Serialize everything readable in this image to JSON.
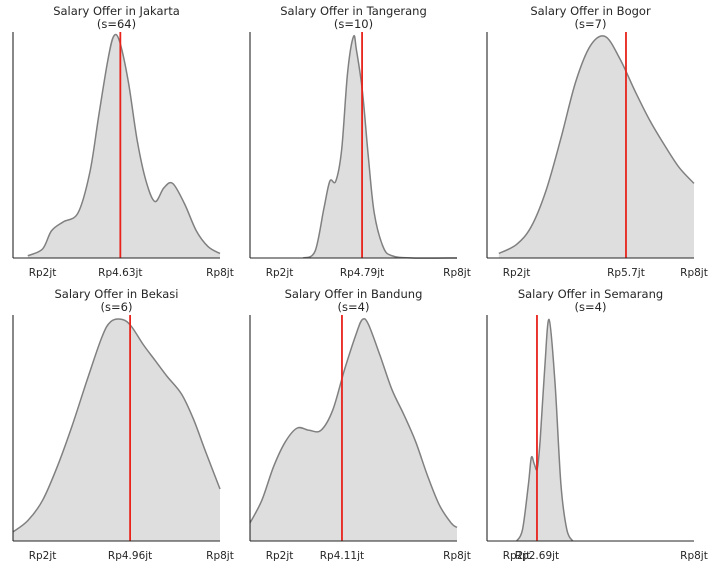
{
  "chart_data": [
    {
      "type": "area",
      "title": "Salary Offer in Jakarta",
      "subtitle": "(s=64)",
      "xlim": [
        1.0,
        8.0
      ],
      "x": [
        1.5,
        2.0,
        2.3,
        2.7,
        3.2,
        3.6,
        3.9,
        4.2,
        4.4,
        4.6,
        4.9,
        5.2,
        5.5,
        5.8,
        6.1,
        6.4,
        6.8,
        7.2,
        7.6,
        8.0
      ],
      "y": [
        0.01,
        0.04,
        0.12,
        0.16,
        0.2,
        0.38,
        0.63,
        0.87,
        0.98,
        0.96,
        0.78,
        0.52,
        0.34,
        0.25,
        0.31,
        0.33,
        0.24,
        0.12,
        0.05,
        0.02
      ],
      "median_value": 4.63,
      "median_label": "Rp4.63jt",
      "tick_labels": [
        "Rp2jt",
        "Rp8jt"
      ],
      "tick_values": [
        2,
        8
      ],
      "line_color": "#808080",
      "fill_color": "#dedede",
      "median_color": "#e8221b"
    },
    {
      "type": "area",
      "title": "Salary Offer in Tangerang",
      "subtitle": "(s=10)",
      "xlim": [
        1.0,
        8.0
      ],
      "x": [
        2.8,
        3.2,
        3.5,
        3.7,
        3.9,
        4.1,
        4.3,
        4.5,
        4.6,
        4.8,
        5.0,
        5.2,
        5.5,
        5.8,
        6.5,
        8.0
      ],
      "y": [
        0.0,
        0.03,
        0.22,
        0.34,
        0.34,
        0.48,
        0.82,
        0.98,
        0.92,
        0.74,
        0.45,
        0.2,
        0.05,
        0.01,
        0.0,
        0.0
      ],
      "median_value": 4.79,
      "median_label": "Rp4.79jt",
      "tick_labels": [
        "Rp2jt",
        "Rp8jt"
      ],
      "tick_values": [
        2,
        8
      ],
      "line_color": "#808080",
      "fill_color": "#dedede",
      "median_color": "#e8221b"
    },
    {
      "type": "area",
      "title": "Salary Offer in Bogor",
      "subtitle": "(s=7)",
      "xlim": [
        1.0,
        8.0
      ],
      "x": [
        1.4,
        2.0,
        2.5,
        3.0,
        3.5,
        4.0,
        4.5,
        5.0,
        5.5,
        6.0,
        6.5,
        7.0,
        7.5,
        8.0
      ],
      "y": [
        0.02,
        0.06,
        0.14,
        0.3,
        0.53,
        0.78,
        0.94,
        0.98,
        0.88,
        0.74,
        0.61,
        0.5,
        0.4,
        0.33
      ],
      "median_value": 5.7,
      "median_label": "Rp5.7jt",
      "tick_labels": [
        "Rp2jt",
        "Rp8jt"
      ],
      "tick_values": [
        2,
        8
      ],
      "line_color": "#808080",
      "fill_color": "#dedede",
      "median_color": "#e8221b"
    },
    {
      "type": "area",
      "title": "Salary Offer in Bekasi",
      "subtitle": "(s=6)",
      "xlim": [
        1.0,
        8.0
      ],
      "x": [
        1.0,
        1.5,
        2.0,
        2.5,
        3.0,
        3.5,
        4.0,
        4.3,
        4.7,
        5.0,
        5.4,
        5.8,
        6.2,
        6.7,
        7.1,
        7.5,
        8.0
      ],
      "y": [
        0.04,
        0.09,
        0.18,
        0.33,
        0.51,
        0.71,
        0.9,
        0.97,
        0.98,
        0.95,
        0.87,
        0.8,
        0.73,
        0.65,
        0.54,
        0.4,
        0.23
      ],
      "median_value": 4.96,
      "median_label": "Rp4.96jt",
      "tick_labels": [
        "Rp2jt",
        "Rp8jt"
      ],
      "tick_values": [
        2,
        8
      ],
      "line_color": "#808080",
      "fill_color": "#dedede",
      "median_color": "#e8221b"
    },
    {
      "type": "area",
      "title": "Salary Offer in Bandung",
      "subtitle": "(s=4)",
      "xlim": [
        1.0,
        8.0
      ],
      "x": [
        1.0,
        1.4,
        1.8,
        2.2,
        2.6,
        3.0,
        3.4,
        3.8,
        4.2,
        4.6,
        4.8,
        5.0,
        5.4,
        5.8,
        6.2,
        6.6,
        7.0,
        7.4,
        7.8,
        8.0
      ],
      "y": [
        0.08,
        0.18,
        0.33,
        0.44,
        0.5,
        0.49,
        0.49,
        0.58,
        0.76,
        0.92,
        0.98,
        0.96,
        0.82,
        0.67,
        0.56,
        0.44,
        0.29,
        0.16,
        0.08,
        0.06
      ],
      "median_value": 4.11,
      "median_label": "Rp4.11jt",
      "tick_labels": [
        "Rp2jt",
        "Rp8jt"
      ],
      "tick_values": [
        2,
        8
      ],
      "line_color": "#808080",
      "fill_color": "#dedede",
      "median_color": "#e8221b"
    },
    {
      "type": "area",
      "title": "Salary Offer in Semarang",
      "subtitle": "(s=4)",
      "xlim": [
        1.0,
        8.0
      ],
      "x": [
        2.0,
        2.2,
        2.4,
        2.5,
        2.6,
        2.7,
        2.8,
        2.95,
        3.1,
        3.3,
        3.5,
        3.7,
        3.9
      ],
      "y": [
        0.0,
        0.05,
        0.25,
        0.37,
        0.34,
        0.32,
        0.45,
        0.76,
        0.98,
        0.7,
        0.25,
        0.05,
        0.0
      ],
      "median_value": 2.69,
      "median_label": "Rp2.69jt",
      "tick_labels": [
        "Rp2jt",
        "Rp8jt"
      ],
      "tick_values": [
        2,
        8
      ],
      "line_color": "#808080",
      "fill_color": "#dedede",
      "median_color": "#e8221b"
    }
  ]
}
